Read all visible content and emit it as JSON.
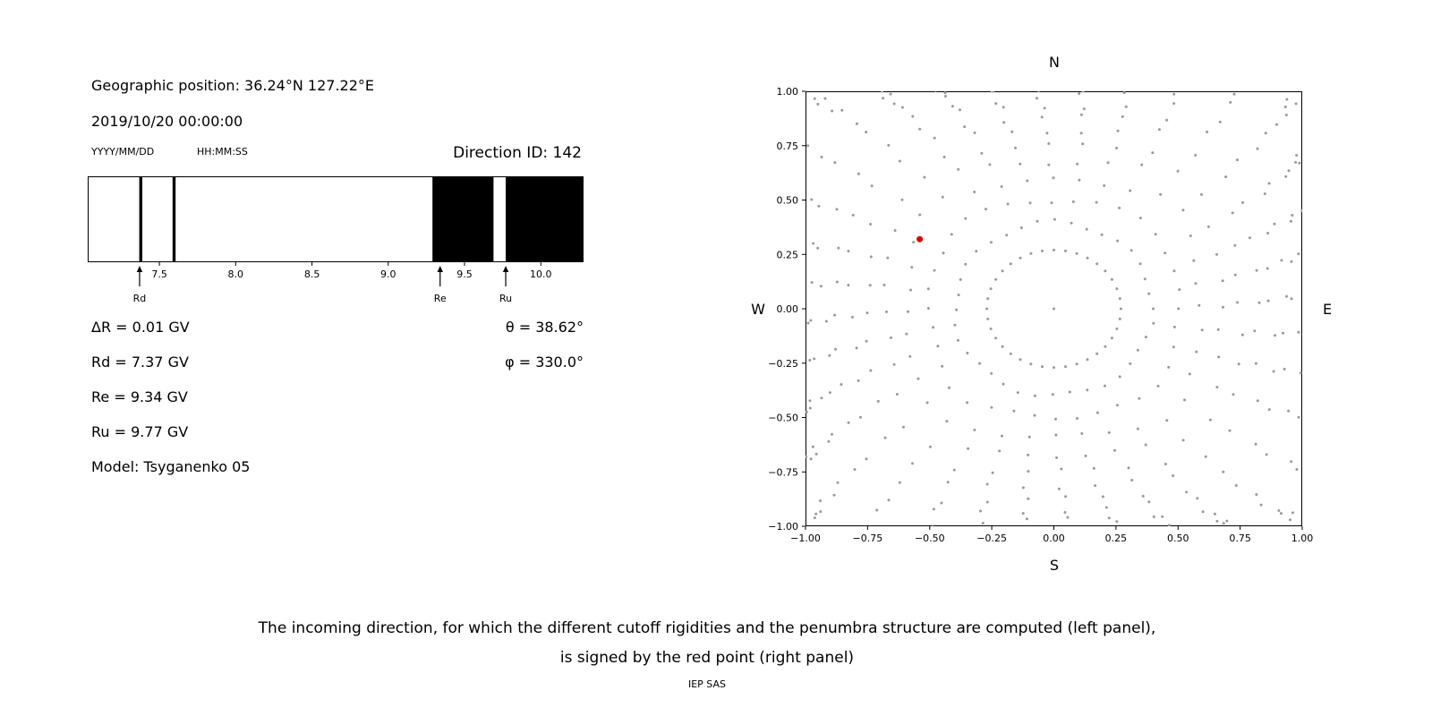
{
  "left_panel": {
    "geographic_position": "Geographic position: 36.24°N 127.22°E",
    "datetime": "2019/10/20 00:00:00",
    "date_format_label": "YYYY/MM/DD",
    "time_format_label": "HH:MM:SS",
    "direction_id": "Direction ID: 142",
    "delta_r": "ΔR = 0.01 GV",
    "rd": "Rd = 7.37 GV",
    "re": "Re = 9.34 GV",
    "ru": "Ru = 9.77 GV",
    "model": "Model: Tsyganenko 05",
    "theta": "θ = 38.62°",
    "phi": "φ = 330.0°"
  },
  "caption": {
    "line1": "The incoming direction, for which the different cutoff rigidities and the penumbra structure are computed (left panel),",
    "line2": "is signed by the red point (right panel)",
    "credit": "IEP SAS"
  },
  "chart_data": [
    {
      "type": "bar",
      "name": "penumbra-structure",
      "x_range": [
        7.03,
        10.28
      ],
      "x_ticks": [
        7.5,
        8.0,
        8.5,
        9.0,
        9.5,
        10.0
      ],
      "band_color": "#000000",
      "background_color": "#ffffff",
      "black_bands": [
        [
          7.368,
          7.388
        ],
        [
          7.586,
          7.606
        ],
        [
          9.29,
          9.69
        ],
        [
          9.77,
          10.28
        ]
      ],
      "markers": [
        {
          "label": "Rd",
          "value": 7.37
        },
        {
          "label": "Re",
          "value": 9.34
        },
        {
          "label": "Ru",
          "value": 9.77
        }
      ]
    },
    {
      "type": "scatter",
      "name": "incoming-direction-map",
      "xlim": [
        -1.0,
        1.0
      ],
      "ylim": [
        -1.0,
        1.0
      ],
      "x_ticks": [
        -1.0,
        -0.75,
        -0.5,
        -0.25,
        0.0,
        0.25,
        0.5,
        0.75,
        1.0
      ],
      "y_ticks": [
        1.0,
        0.75,
        0.5,
        0.25,
        0.0,
        -0.25,
        -0.5,
        -0.75,
        -1.0
      ],
      "compass_labels": {
        "top": "N",
        "right": "E",
        "bottom": "S",
        "left": "W"
      },
      "dot_color": "#999999",
      "highlight_point": {
        "x": -0.54,
        "y": 0.32,
        "color": "#dd0000"
      },
      "pattern": {
        "description": "36 radial rays of small gray dots every 10 degrees from r≈0.40 to the square plot edge with dots clustering near the outer end; inner ring of gray dots at r≈0.27; single gray dot at origin",
        "n_rays": 36,
        "ray_start_radius": 0.4,
        "inner_ring_radius": 0.27,
        "dots_per_ray": 13
      }
    }
  ]
}
